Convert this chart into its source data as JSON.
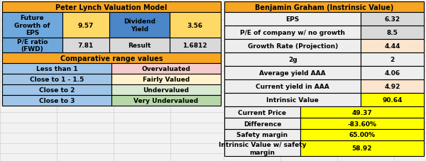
{
  "lynch_title": "Peter Lynch Valuation Model",
  "lynch_rows": [
    [
      {
        "text": "Future\nGrowth of\nEPS",
        "bg": "#6fa8dc",
        "fg": "#000000"
      },
      {
        "text": "9.57",
        "bg": "#ffd966",
        "fg": "#000000"
      },
      {
        "text": "Dividend\nYield",
        "bg": "#4a86c8",
        "fg": "#000000"
      },
      {
        "text": "3.56",
        "bg": "#ffd966",
        "fg": "#000000"
      }
    ],
    [
      {
        "text": "P/E ratio\n(FWD)",
        "bg": "#6fa8dc",
        "fg": "#000000"
      },
      {
        "text": "7.81",
        "bg": "#d9d9d9",
        "fg": "#000000"
      },
      {
        "text": "Result",
        "bg": "#d9d9d9",
        "fg": "#000000"
      },
      {
        "text": "1.6812",
        "bg": "#d9d9d9",
        "fg": "#000000"
      }
    ]
  ],
  "lynch_comp_title": "Comparative range values",
  "lynch_comp_rows": [
    [
      {
        "text": "Less than 1",
        "bg": "#9fc5e8",
        "fg": "#000000"
      },
      {
        "text": "Overvaluated",
        "bg": "#f4cccc",
        "fg": "#000000"
      }
    ],
    [
      {
        "text": "Close to 1 - 1.5",
        "bg": "#9fc5e8",
        "fg": "#000000"
      },
      {
        "text": "Fairly Valued",
        "bg": "#fff2cc",
        "fg": "#000000"
      }
    ],
    [
      {
        "text": "Close to 2",
        "bg": "#9fc5e8",
        "fg": "#000000"
      },
      {
        "text": "Undervalued",
        "bg": "#d9ead3",
        "fg": "#000000"
      }
    ],
    [
      {
        "text": "Close to 3",
        "bg": "#9fc5e8",
        "fg": "#000000"
      },
      {
        "text": "Very Undervalued",
        "bg": "#b6d7a8",
        "fg": "#000000"
      }
    ]
  ],
  "graham_title": "Benjamin Graham (Instrinsic Value)",
  "graham_rows": [
    {
      "label": "EPS",
      "value": "6.32",
      "label_bg": "#eeeeee",
      "value_bg": "#d9d9d9"
    },
    {
      "label": "P/E of company w/ no growth",
      "value": "8.5",
      "label_bg": "#eeeeee",
      "value_bg": "#d9d9d9"
    },
    {
      "label": "Growth Rate (Projection)",
      "value": "4.44",
      "label_bg": "#eeeeee",
      "value_bg": "#fce5cd"
    },
    {
      "label": "2g",
      "value": "2",
      "label_bg": "#eeeeee",
      "value_bg": "#eeeeee"
    },
    {
      "label": "Average yield AAA",
      "value": "4.06",
      "label_bg": "#eeeeee",
      "value_bg": "#eeeeee"
    },
    {
      "label": "Current yield in AAA",
      "value": "4.92",
      "label_bg": "#eeeeee",
      "value_bg": "#fce5cd"
    },
    {
      "label": "Intrinsic Value",
      "value": "90.64",
      "label_bg": "#eeeeee",
      "value_bg": "#ffff00"
    }
  ],
  "graham_bottom_rows": [
    {
      "label": "Current Price",
      "value": "49.37",
      "label_bg": "#eeeeee",
      "value_bg": "#ffff00"
    },
    {
      "label": "Difference",
      "value": "-83.60%",
      "label_bg": "#eeeeee",
      "value_bg": "#ffff00"
    },
    {
      "label": "Safety margin",
      "value": "65.00%",
      "label_bg": "#eeeeee",
      "value_bg": "#ffff00"
    },
    {
      "label": "Intrinsic Value w/ safety\nmargin",
      "value": "58.92",
      "label_bg": "#eeeeee",
      "value_bg": "#ffff00"
    }
  ],
  "title_bg": "#f6a623",
  "title_fg": "#000000",
  "sheet_bg": "#f2f2f2",
  "sheet_line": "#d0d0d0",
  "border_color": "#000000"
}
